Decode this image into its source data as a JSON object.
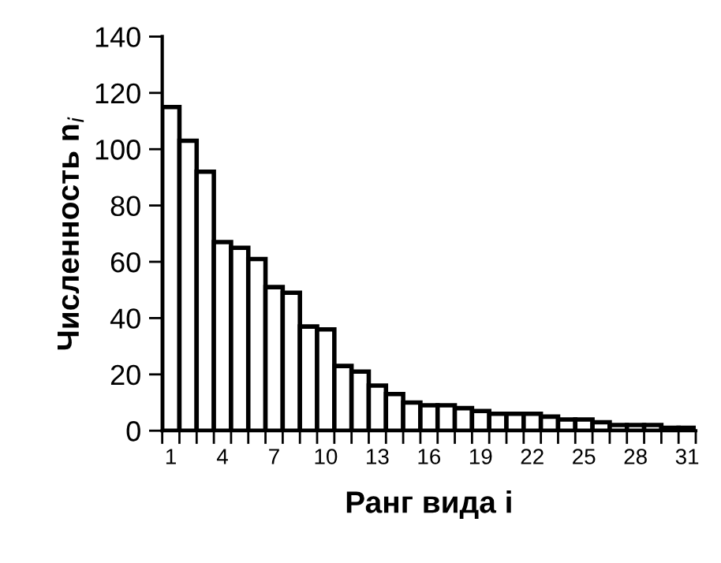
{
  "chart_data": {
    "type": "bar",
    "xlabel": "Ранг вида i",
    "ylabel": "Численность n$_{i}$",
    "categories": [
      "1",
      null,
      null,
      "4",
      null,
      null,
      "7",
      null,
      null,
      "10",
      null,
      null,
      "13",
      null,
      null,
      "16",
      null,
      null,
      "19",
      null,
      null,
      "22",
      null,
      null,
      "25",
      null,
      null,
      "28",
      null,
      null,
      "31"
    ],
    "values": [
      115,
      103,
      92,
      67,
      65,
      61,
      51,
      49,
      37,
      36,
      23,
      21,
      16,
      13,
      10,
      9,
      9,
      8,
      7,
      6,
      6,
      6,
      5,
      4,
      4,
      3,
      2,
      2,
      2,
      1,
      1
    ],
    "color": "#ffffff",
    "ylim": [
      0,
      140
    ],
    "yticks": [
      0,
      20,
      40,
      60,
      80,
      100,
      120,
      140
    ],
    "grid": false,
    "legend": false
  }
}
